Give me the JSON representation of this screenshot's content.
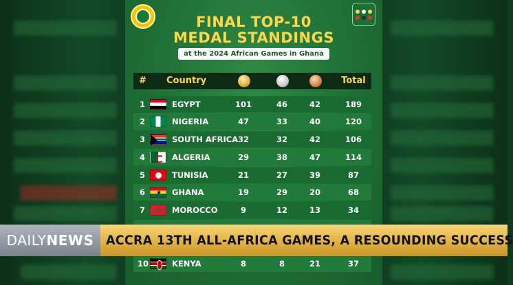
{
  "poster": {
    "title_line1": "FINAL TOP-10",
    "title_line2": "MEDAL STANDINGS",
    "subtitle": "at the 2024 African Games in Ghana",
    "header": {
      "rank": "#",
      "country": "Country",
      "total": "Total"
    },
    "rows": [
      {
        "rank": "1",
        "country": "EGYPT",
        "gold": "101",
        "silver": "46",
        "bronze": "42",
        "total": "189"
      },
      {
        "rank": "2",
        "country": "NIGERIA",
        "gold": "47",
        "silver": "33",
        "bronze": "40",
        "total": "120"
      },
      {
        "rank": "3",
        "country": "SOUTH AFRICA",
        "gold": "32",
        "silver": "32",
        "bronze": "42",
        "total": "106"
      },
      {
        "rank": "4",
        "country": "ALGERIA",
        "gold": "29",
        "silver": "38",
        "bronze": "47",
        "total": "114"
      },
      {
        "rank": "5",
        "country": "TUNISIA",
        "gold": "21",
        "silver": "27",
        "bronze": "39",
        "total": "87"
      },
      {
        "rank": "6",
        "country": "GHANA",
        "gold": "19",
        "silver": "29",
        "bronze": "20",
        "total": "68"
      },
      {
        "rank": "7",
        "country": "MOROCCO",
        "gold": "9",
        "silver": "12",
        "bronze": "13",
        "total": "34"
      },
      {
        "rank": "10",
        "country": "KENYA",
        "gold": "8",
        "silver": "8",
        "bronze": "21",
        "total": "37"
      }
    ]
  },
  "ticker": {
    "brand_part1": "DAILY",
    "brand_part2": "NEWS",
    "headline": "ACCRA 13TH ALL-AFRICA GAMES, A RESOUNDING SUCCESS"
  },
  "colors": {
    "title": "#ffd84a",
    "poster_green": "#1f6f36",
    "header_bg": "#0d2a14",
    "ticker_gold": "#e7b84a"
  }
}
